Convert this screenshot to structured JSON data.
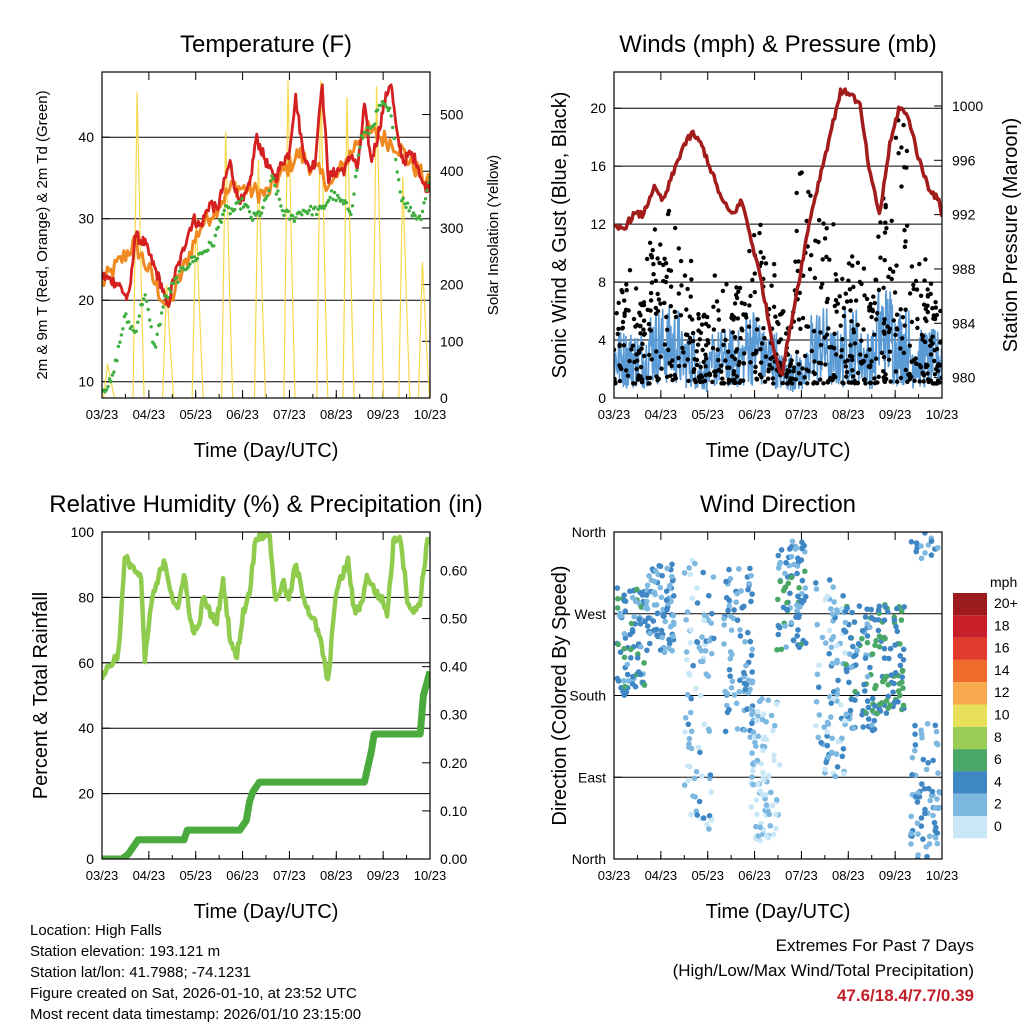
{
  "chart_data": [
    {
      "type": "line",
      "title": "Temperature (F)",
      "xlabel": "Time (Day/UTC)",
      "ylabel": "2m & 9m T (Red, Orange) & 2m Td (Green)",
      "ylabel_right": "Solar Insolation (Yellow)",
      "x_ticks": [
        "03/23",
        "04/23",
        "05/23",
        "06/23",
        "07/23",
        "08/23",
        "09/23",
        "10/23"
      ],
      "y_ticks": [
        10,
        20,
        30,
        40
      ],
      "y_right_ticks": [
        0,
        100,
        200,
        300,
        400,
        500
      ],
      "ylim": [
        8,
        48
      ],
      "y_right_lim": [
        0,
        575
      ],
      "series": [
        {
          "name": "2m T",
          "color": "#d42020",
          "x": [
            0,
            0.05,
            0.08,
            0.09,
            0.1,
            0.13,
            0.16,
            0.18,
            0.2,
            0.22,
            0.24,
            0.26,
            0.28,
            0.3,
            0.33,
            0.35,
            0.37,
            0.39,
            0.41,
            0.43,
            0.45,
            0.47,
            0.49,
            0.51,
            0.53,
            0.55,
            0.57,
            0.59,
            0.61,
            0.63,
            0.65,
            0.67,
            0.69,
            0.72,
            0.74,
            0.76,
            0.78,
            0.8,
            0.82,
            0.84,
            0.86,
            0.88,
            0.9,
            0.92,
            0.94,
            0.96,
            0.98,
            1.0
          ],
          "values": [
            23,
            22,
            20,
            23,
            28,
            27,
            24,
            22,
            19,
            23,
            25,
            28,
            30,
            29,
            32,
            31,
            34,
            37,
            33,
            32,
            34,
            40,
            38,
            36,
            35,
            37,
            38,
            45,
            39,
            36,
            37,
            47,
            35,
            36,
            36,
            38,
            36,
            44,
            37,
            40,
            44,
            47,
            40,
            37,
            38,
            37,
            34,
            34
          ]
        },
        {
          "name": "9m T",
          "color": "#f08a20",
          "x": [
            0,
            0.1,
            0.2,
            0.3,
            0.4,
            0.5,
            0.6,
            0.7,
            0.8,
            0.9,
            1.0
          ],
          "values": [
            22,
            27,
            19,
            29,
            34,
            33,
            38,
            34,
            41,
            39,
            34
          ]
        },
        {
          "name": "2m Td",
          "color": "#3fae3f",
          "x": [
            0,
            0.03,
            0.07,
            0.1,
            0.13,
            0.16,
            0.19,
            0.22,
            0.25,
            0.28,
            0.31,
            0.34,
            0.37,
            0.4,
            0.43,
            0.46,
            0.49,
            0.52,
            0.55,
            0.58,
            0.61,
            0.64,
            0.67,
            0.7,
            0.73,
            0.76,
            0.79,
            0.82,
            0.85,
            0.88,
            0.91,
            0.94,
            0.97,
            1.0
          ],
          "values": [
            9,
            10,
            18,
            16,
            21,
            14,
            20,
            22,
            24,
            25,
            26,
            27,
            31,
            31,
            32,
            30,
            31,
            35,
            31,
            30,
            31,
            31,
            31,
            33,
            32,
            31,
            40,
            41,
            44,
            43,
            33,
            31,
            30,
            35
          ]
        },
        {
          "name": "Solar Insolation",
          "color": "#f7d84a",
          "axis": "right",
          "peaks_x": [
            0.02,
            0.11,
            0.2,
            0.29,
            0.38,
            0.48,
            0.57,
            0.67,
            0.75,
            0.84,
            0.92,
            0.98
          ],
          "peaks": [
            60,
            540,
            200,
            320,
            470,
            420,
            560,
            560,
            530,
            550,
            390,
            240
          ]
        }
      ]
    },
    {
      "type": "scatter",
      "title": "Winds (mph) & Pressure (mb)",
      "xlabel": "Time (Day/UTC)",
      "ylabel": "Sonic Wind & Gust (Blue, Black)",
      "ylabel_right": "Station Pressure (Maroon)",
      "x_ticks": [
        "03/23",
        "04/23",
        "05/23",
        "06/23",
        "07/23",
        "08/23",
        "09/23",
        "10/23"
      ],
      "y_ticks": [
        0,
        4,
        8,
        12,
        16,
        20
      ],
      "y_right_ticks": [
        980,
        984,
        988,
        992,
        996,
        1000
      ],
      "ylim": [
        0,
        22.5
      ],
      "y_right_lim": [
        978.5,
        1002.5
      ],
      "series": [
        {
          "name": "Station Pressure",
          "color": "#a31c1c",
          "x": [
            0,
            0.03,
            0.06,
            0.09,
            0.12,
            0.15,
            0.18,
            0.21,
            0.24,
            0.27,
            0.3,
            0.33,
            0.36,
            0.39,
            0.42,
            0.45,
            0.48,
            0.51,
            0.54,
            0.57,
            0.6,
            0.63,
            0.66,
            0.69,
            0.72,
            0.75,
            0.78,
            0.81,
            0.84,
            0.87,
            0.9,
            0.93,
            0.96,
            0.99,
            1.0
          ],
          "values": [
            991,
            991,
            992,
            992,
            994,
            993,
            995,
            997,
            998,
            997,
            995,
            993,
            992,
            993,
            990,
            987,
            983,
            980,
            984,
            988,
            992,
            995,
            998,
            1001,
            1001,
            1000,
            995,
            992,
            997,
            1000,
            999,
            996,
            994,
            993,
            992
          ]
        },
        {
          "name": "Sonic Wind",
          "color": "#5b9bd5",
          "mean_values": [
            3,
            3,
            4,
            4,
            3,
            2,
            3,
            3,
            4,
            3,
            2,
            2,
            4,
            3,
            4,
            3,
            5,
            4,
            3,
            3
          ]
        },
        {
          "name": "Gust",
          "color": "#000000",
          "max_values": [
            9,
            8,
            12,
            13,
            10,
            6,
            9,
            8,
            12,
            10,
            6,
            17,
            13,
            12,
            10,
            9,
            14,
            20,
            10,
            8
          ]
        }
      ]
    },
    {
      "type": "line",
      "title": "Relative Humidity (%) & Precipitation (in)",
      "xlabel": "Time (Day/UTC)",
      "ylabel": "Percent & Total Rainfall",
      "x_ticks": [
        "03/23",
        "04/23",
        "05/23",
        "06/23",
        "07/23",
        "08/23",
        "09/23",
        "10/23"
      ],
      "y_ticks": [
        0,
        20,
        40,
        60,
        80,
        100
      ],
      "y_right_ticks": [
        "0.00",
        "0.10",
        "0.20",
        "0.30",
        "0.40",
        "0.50",
        "0.60"
      ],
      "ylim": [
        0,
        100
      ],
      "y_right_lim": [
        0,
        0.68
      ],
      "series": [
        {
          "name": "Relative Humidity",
          "color": "#8fcc4e",
          "x": [
            0,
            0.03,
            0.05,
            0.07,
            0.09,
            0.12,
            0.13,
            0.15,
            0.17,
            0.19,
            0.21,
            0.23,
            0.25,
            0.27,
            0.29,
            0.31,
            0.33,
            0.35,
            0.37,
            0.39,
            0.41,
            0.43,
            0.45,
            0.47,
            0.49,
            0.51,
            0.53,
            0.55,
            0.57,
            0.59,
            0.61,
            0.63,
            0.65,
            0.67,
            0.69,
            0.71,
            0.73,
            0.75,
            0.77,
            0.79,
            0.81,
            0.83,
            0.85,
            0.87,
            0.89,
            0.91,
            0.93,
            0.95,
            0.97,
            0.99,
            1.0
          ],
          "values": [
            56,
            60,
            63,
            92,
            90,
            85,
            60,
            78,
            85,
            92,
            82,
            75,
            88,
            72,
            69,
            80,
            75,
            73,
            85,
            68,
            61,
            75,
            82,
            99,
            99,
            100,
            78,
            85,
            79,
            90,
            82,
            76,
            72,
            65,
            53,
            80,
            86,
            91,
            75,
            78,
            87,
            82,
            80,
            75,
            98,
            99,
            80,
            75,
            79,
            96,
            98
          ]
        },
        {
          "name": "Total Precipitation",
          "color": "#4aaa3d",
          "axis": "right",
          "x": [
            0,
            0.06,
            0.08,
            0.1,
            0.11,
            0.15,
            0.25,
            0.26,
            0.42,
            0.44,
            0.45,
            0.46,
            0.48,
            0.55,
            0.8,
            0.82,
            0.83,
            0.97,
            0.98,
            1.0
          ],
          "values": [
            0,
            0,
            0.01,
            0.03,
            0.04,
            0.04,
            0.04,
            0.06,
            0.06,
            0.08,
            0.12,
            0.14,
            0.16,
            0.16,
            0.16,
            0.22,
            0.26,
            0.26,
            0.34,
            0.39
          ]
        }
      ]
    },
    {
      "type": "scatter",
      "title": "Wind Direction",
      "xlabel": "Time (Day/UTC)",
      "ylabel": "Direction (Colored By Speed)",
      "x_ticks": [
        "03/23",
        "04/23",
        "05/23",
        "06/23",
        "07/23",
        "08/23",
        "09/23",
        "10/23"
      ],
      "y_ticks": [
        "North",
        "East",
        "South",
        "West",
        "North"
      ],
      "ylim": [
        0,
        360
      ],
      "colorbar": {
        "label": "mph",
        "levels": [
          "20+",
          "18",
          "16",
          "14",
          "12",
          "10",
          "8",
          "6",
          "4",
          "2",
          "0"
        ],
        "colors": [
          "#9c1b1b",
          "#c8202a",
          "#e03b2c",
          "#f06a2b",
          "#f9a84d",
          "#e8e05a",
          "#9acd56",
          "#4aa766",
          "#3f86c4",
          "#7cb8e0",
          "#c9e7f7"
        ]
      },
      "points_clusters": [
        {
          "x": 0.05,
          "dir_center": 240,
          "spread": 60,
          "speed": 4
        },
        {
          "x": 0.14,
          "dir_center": 275,
          "spread": 50,
          "speed": 3
        },
        {
          "x": 0.26,
          "dir_center": 180,
          "spread": 150,
          "speed": 2
        },
        {
          "x": 0.38,
          "dir_center": 230,
          "spread": 90,
          "speed": 3
        },
        {
          "x": 0.46,
          "dir_center": 100,
          "spread": 80,
          "speed": 1
        },
        {
          "x": 0.54,
          "dir_center": 290,
          "spread": 60,
          "speed": 4
        },
        {
          "x": 0.66,
          "dir_center": 200,
          "spread": 110,
          "speed": 2
        },
        {
          "x": 0.75,
          "dir_center": 210,
          "spread": 70,
          "speed": 4
        },
        {
          "x": 0.84,
          "dir_center": 220,
          "spread": 60,
          "speed": 5
        },
        {
          "x": 0.95,
          "dir_center": 60,
          "spread": 90,
          "speed": 3
        }
      ]
    }
  ],
  "footer": {
    "location": "Location: High Falls",
    "elevation": "Station elevation: 193.121 m",
    "latlon": "Station lat/lon: 41.7988; -74.1231",
    "created": "Figure created on Sat, 2026-01-10, at 23:52 UTC",
    "recent": "Most recent data timestamp: 2026/01/10 23:15:00",
    "extremes_title": "Extremes For Past 7 Days",
    "extremes_subtitle": "(High/Low/Max Wind/Total Precipitation)",
    "extremes_values": "47.6/18.4/7.7/0.39"
  }
}
